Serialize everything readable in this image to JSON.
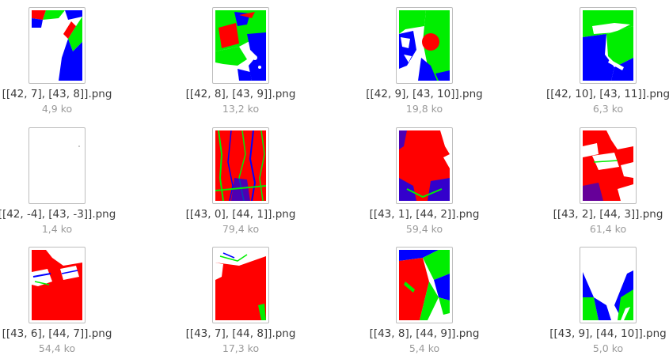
{
  "files": [
    {
      "name": "[[42, 7], [43, 8]].png",
      "size": "4,9 ko"
    },
    {
      "name": "[[42, 8], [43, 9]].png",
      "size": "13,2 ko"
    },
    {
      "name": "[[42, 9], [43, 10]].png",
      "size": "19,8 ko"
    },
    {
      "name": "[[42, 10], [43, 11]].png",
      "size": "6,3 ko"
    },
    {
      "name": "[[42, -4], [43, -3]].png",
      "size": "1,4 ko"
    },
    {
      "name": "[[43, 0], [44, 1]].png",
      "size": "79,4 ko"
    },
    {
      "name": "[[43, 1], [44, 2]].png",
      "size": "59,4 ko"
    },
    {
      "name": "[[43, 2], [44, 3]].png",
      "size": "61,4 ko"
    },
    {
      "name": "[[43, 6], [44, 7]].png",
      "size": "54,4 ko"
    },
    {
      "name": "[[43, 7], [44, 8]].png",
      "size": "17,3 ko"
    },
    {
      "name": "[[43, 8], [44, 9]].png",
      "size": "5,4 ko"
    },
    {
      "name": "[[43, 9], [44, 10]].png",
      "size": "5,0 ko"
    }
  ],
  "colors": {
    "red": "#ff0000",
    "green": "#00ee00",
    "blue": "#0000ff",
    "filename_text": "#3c3c3c",
    "size_text": "#9a9a9a"
  }
}
